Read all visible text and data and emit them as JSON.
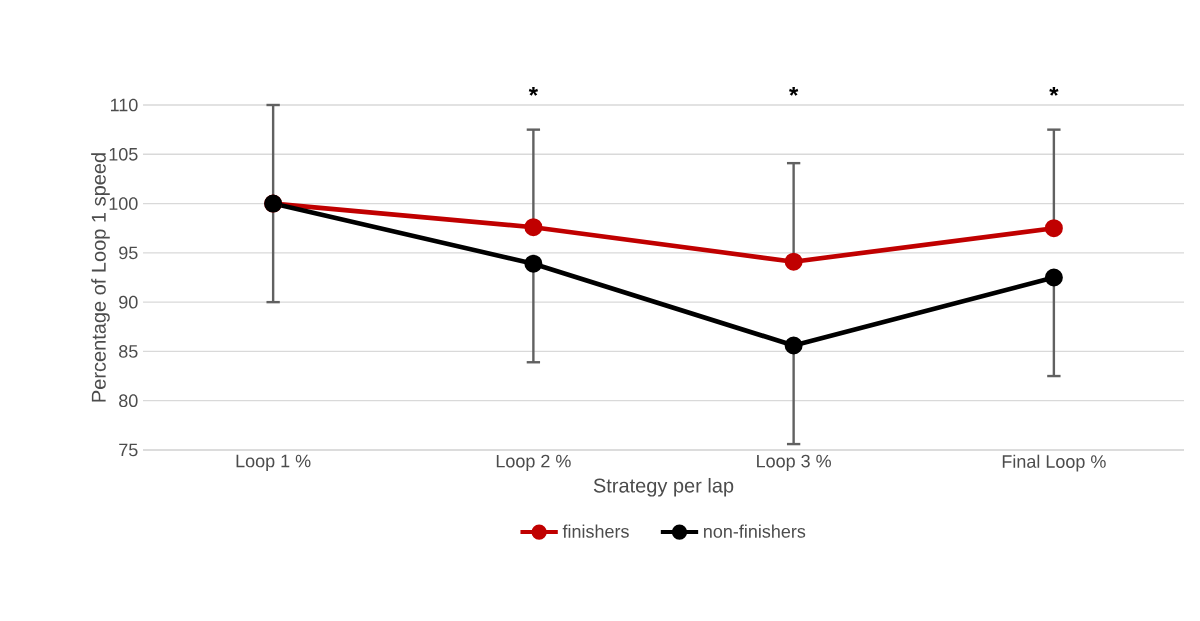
{
  "chart_data": {
    "type": "line",
    "xlabel": "Strategy per lap",
    "ylabel": "Percentage of Loop 1 speed",
    "categories": [
      "Loop 1 %",
      "Loop 2 %",
      "Loop 3 %",
      "Final Loop %"
    ],
    "series": [
      {
        "name": "finishers",
        "color": "#c00000",
        "values": [
          100,
          97.6,
          94.1,
          97.5
        ],
        "errors": [
          [
            100,
            110
          ],
          [
            97.6,
            107.5
          ],
          [
            94.1,
            104.1
          ],
          [
            97.5,
            107.5
          ]
        ]
      },
      {
        "name": "non-finishers",
        "color": "#000000",
        "values": [
          100,
          93.9,
          85.6,
          92.5
        ],
        "errors": [
          [
            90,
            100
          ],
          [
            83.9,
            93.9
          ],
          [
            75.6,
            85.6
          ],
          [
            82.5,
            92.5
          ]
        ]
      }
    ],
    "ylim": [
      75,
      110
    ],
    "yticks": [
      75,
      80,
      85,
      90,
      95,
      100,
      105,
      110
    ],
    "grid": "y",
    "legend": "bottom",
    "marker": "circle",
    "line_style": "solid",
    "annotations": [
      "*",
      "*",
      "*"
    ]
  }
}
